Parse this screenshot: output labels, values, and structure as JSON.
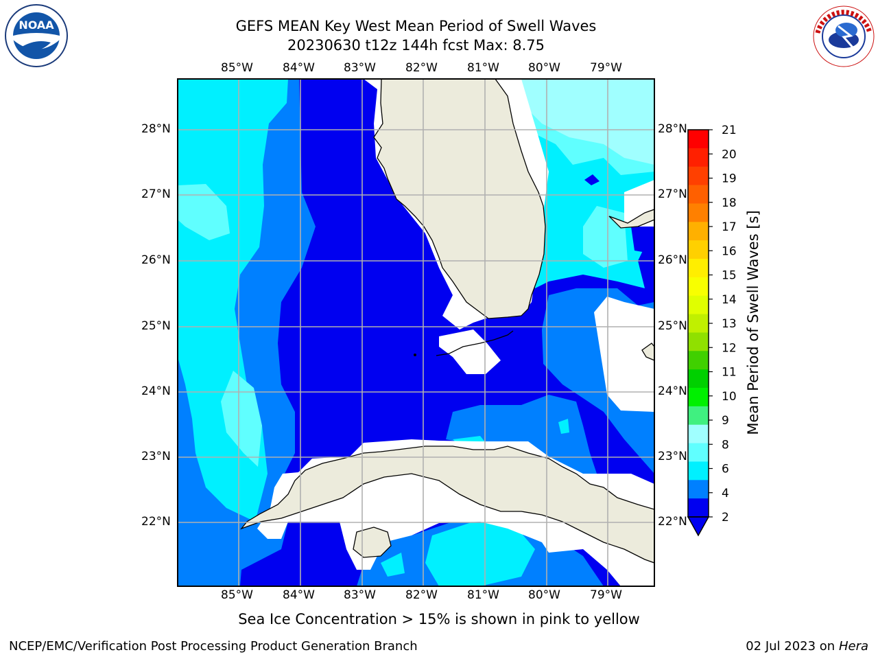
{
  "title": {
    "line1": "GEFS MEAN Key West Mean Period of Swell Waves",
    "line2": "20230630 t12z 144h fcst   Max: 8.75"
  },
  "map": {
    "lon_labels": [
      "85°W",
      "84°W",
      "83°W",
      "82°W",
      "81°W",
      "80°W",
      "79°W"
    ],
    "lat_labels": [
      "28°N",
      "27°N",
      "26°N",
      "25°N",
      "24°N",
      "23°N",
      "22°N"
    ],
    "colors": {
      "land": "#ecebdc",
      "band_2_4": "#0000f0",
      "band_4_6": "#0080ff",
      "band_6_8": "#00f0ff",
      "band_8_9": "#60ffff",
      "band_9_10": "#a0ffff",
      "no_data": "#ffffff",
      "gridlines": "#b0b0b0"
    }
  },
  "colorbar": {
    "label": "Mean Period of Swell Waves [s]",
    "ticks": [
      "21",
      "20",
      "19",
      "18",
      "17",
      "16",
      "15",
      "14",
      "13",
      "12",
      "11",
      "10",
      "9",
      "8",
      "6",
      "4",
      "2"
    ],
    "colors": [
      "#ff0000",
      "#ff2000",
      "#ff4000",
      "#ff6000",
      "#ff8000",
      "#ffb000",
      "#ffd000",
      "#ffee00",
      "#f8ff00",
      "#e0ff00",
      "#c0f000",
      "#90e000",
      "#40d000",
      "#00d000",
      "#00f000",
      "#40f080",
      "#a0ffff",
      "#60ffff",
      "#00f0ff",
      "#0080ff",
      "#0000f0"
    ],
    "extend_color": "#0000f0"
  },
  "caption": "Sea Ice Concentration > 15% is shown in pink to yellow",
  "footer": {
    "left": "NCEP/EMC/Verification Post Processing Product Generation Branch",
    "right_date": "02 Jul 2023 on ",
    "right_host": "Hera"
  },
  "logos": {
    "left_text": "NOAA",
    "right_text": "NATIONAL WEATHER SERVICE"
  }
}
